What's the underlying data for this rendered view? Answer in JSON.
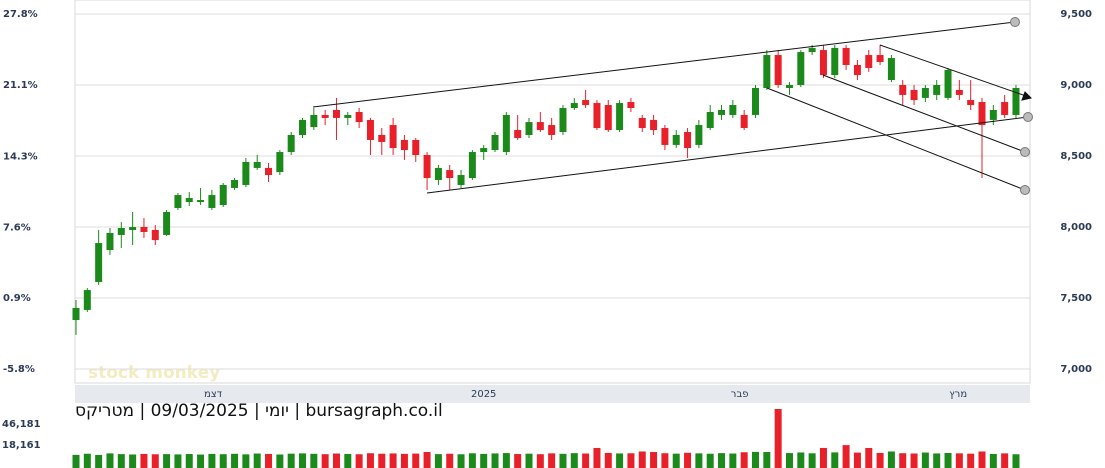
{
  "chart_data": {
    "type": "candlestick",
    "open": [
      7345,
      7416,
      7613,
      7838,
      7944,
      7979,
      8000,
      7979,
      7944,
      8134,
      8176,
      8176,
      8134,
      8155,
      8275,
      8296,
      8416,
      8416,
      8387,
      8528,
      8648,
      8704,
      8789,
      8824,
      8768,
      8810,
      8754,
      8648,
      8718,
      8613,
      8613,
      8507,
      8331,
      8401,
      8296,
      8345,
      8528,
      8542,
      8528,
      8683,
      8648,
      8739,
      8718,
      8669,
      8838,
      8894,
      8873,
      8859,
      8683,
      8880,
      8768,
      8754,
      8697,
      8578,
      8669,
      8578,
      8697,
      8789,
      8789,
      8789,
      8789,
      8979,
      9211,
      8979,
      9000,
      9232,
      9246,
      9070,
      9261,
      9141,
      9211,
      9211,
      9035,
      9000,
      8965,
      8909,
      8930,
      8909,
      8965,
      8894,
      8880,
      8754,
      8880,
      8789
    ],
    "high": [
      7486,
      7570,
      7979,
      7993,
      8035,
      8106,
      8063,
      8014,
      8120,
      8239,
      8246,
      8275,
      8261,
      8310,
      8345,
      8486,
      8507,
      8451,
      8542,
      8669,
      8768,
      8838,
      8824,
      8909,
      8810,
      8838,
      8768,
      8697,
      8768,
      8648,
      8627,
      8528,
      8437,
      8437,
      8402,
      8542,
      8577,
      8669,
      8810,
      8789,
      8768,
      8810,
      8768,
      8859,
      8909,
      8965,
      8894,
      8894,
      8894,
      8909,
      8789,
      8789,
      8718,
      8683,
      8697,
      8754,
      8859,
      8859,
      8894,
      8824,
      9000,
      9246,
      9246,
      9021,
      9246,
      9282,
      9282,
      9282,
      9282,
      9176,
      9246,
      9282,
      9211,
      9035,
      9000,
      9000,
      9035,
      9120,
      9035,
      9035,
      8909,
      8859,
      8930,
      9000
    ],
    "low": [
      7240,
      7402,
      7592,
      7803,
      7852,
      7873,
      7923,
      7873,
      7937,
      8120,
      8148,
      8155,
      8120,
      8141,
      8261,
      8282,
      8402,
      8317,
      8366,
      8507,
      8627,
      8683,
      8718,
      8613,
      8718,
      8697,
      8507,
      8507,
      8507,
      8472,
      8458,
      8261,
      8296,
      8261,
      8275,
      8331,
      8472,
      8528,
      8507,
      8613,
      8627,
      8669,
      8613,
      8648,
      8824,
      8838,
      8683,
      8669,
      8669,
      8810,
      8669,
      8648,
      8542,
      8556,
      8486,
      8556,
      8683,
      8754,
      8768,
      8683,
      8768,
      8965,
      8979,
      8930,
      8986,
      9211,
      9049,
      9049,
      9106,
      9035,
      9092,
      9141,
      9021,
      8859,
      8859,
      8880,
      8894,
      8894,
      8894,
      8824,
      8345,
      8718,
      8768,
      8768
    ],
    "close": [
      7430,
      7556,
      7887,
      7958,
      7993,
      8000,
      7965,
      7908,
      8106,
      8225,
      8204,
      8190,
      8225,
      8296,
      8331,
      8458,
      8458,
      8366,
      8528,
      8648,
      8754,
      8789,
      8768,
      8768,
      8789,
      8739,
      8613,
      8599,
      8556,
      8542,
      8507,
      8345,
      8416,
      8345,
      8366,
      8528,
      8556,
      8648,
      8789,
      8627,
      8739,
      8683,
      8648,
      8838,
      8873,
      8859,
      8697,
      8683,
      8873,
      8838,
      8697,
      8683,
      8578,
      8648,
      8556,
      8718,
      8810,
      8824,
      8859,
      8697,
      8979,
      9211,
      9000,
      9000,
      9232,
      9261,
      9070,
      9261,
      9141,
      9070,
      9120,
      9162,
      9190,
      8930,
      8894,
      8979,
      9000,
      9106,
      8930,
      8859,
      8718,
      8824,
      8789,
      8979
    ],
    "volume": [
      5000,
      6500,
      4800,
      7000,
      6000,
      5500,
      6200,
      5800,
      6000,
      5600,
      6100,
      5400,
      6300,
      5900,
      6400,
      5700,
      6800,
      6200,
      5500,
      6600,
      7000,
      6400,
      5900,
      6800,
      6200,
      5800,
      7200,
      6500,
      6900,
      6300,
      6700,
      8800,
      6000,
      6500,
      5800,
      7100,
      6300,
      6900,
      7400,
      6100,
      6600,
      5900,
      7000,
      6400,
      7300,
      6800,
      14200,
      7600,
      6900,
      7100,
      9500,
      8800,
      7200,
      6600,
      7800,
      7000,
      6500,
      7300,
      6800,
      8500,
      9000,
      8800,
      66200,
      7400,
      8200,
      7100,
      14200,
      8300,
      18000,
      8000,
      14200,
      7600,
      9500,
      7200,
      6800,
      8100,
      6900,
      7500,
      7000,
      6600,
      9500,
      6200,
      7000,
      5800
    ],
    "up_color": "#1b8a1b",
    "down_color": "#e8202a",
    "ylim": [
      6901.5,
      9598.6
    ],
    "yticks": [
      {
        "value": 9500,
        "label": "9,500"
      },
      {
        "value": 9000,
        "label": "9,000"
      },
      {
        "value": 8500,
        "label": "8,500"
      },
      {
        "value": 8000,
        "label": "8,000"
      },
      {
        "value": 7500,
        "label": "7,500"
      },
      {
        "value": 7000,
        "label": "7,000"
      }
    ],
    "y2lim": [
      -7.13,
      29.13
    ],
    "y2ticks": [
      {
        "value": 27.8,
        "label": "27.8%"
      },
      {
        "value": 21.1,
        "label": "21.1%"
      },
      {
        "value": 14.3,
        "label": "14.3%"
      },
      {
        "value": 7.6,
        "label": "7.6%"
      },
      {
        "value": 0.9,
        "label": "0.9%"
      },
      {
        "value": -5.8,
        "label": "-5.8%"
      }
    ],
    "xticks": [
      {
        "value": 12.1,
        "label": "דצמ"
      },
      {
        "value": 36.0,
        "label": "2025"
      },
      {
        "value": 58.6,
        "label": "פבר"
      },
      {
        "value": 77.9,
        "label": "מרץ"
      }
    ],
    "volume_ylim": [
      -12528,
      71533
    ],
    "volume_ticks": [
      {
        "value": 46181,
        "label": "46,181"
      },
      {
        "value": 18161,
        "label": "18,161"
      }
    ],
    "grid": true,
    "caption": "יומי | 09/03/2025 | מטריקס | bursagraph.co.il",
    "watermark": "stock monkey"
  }
}
